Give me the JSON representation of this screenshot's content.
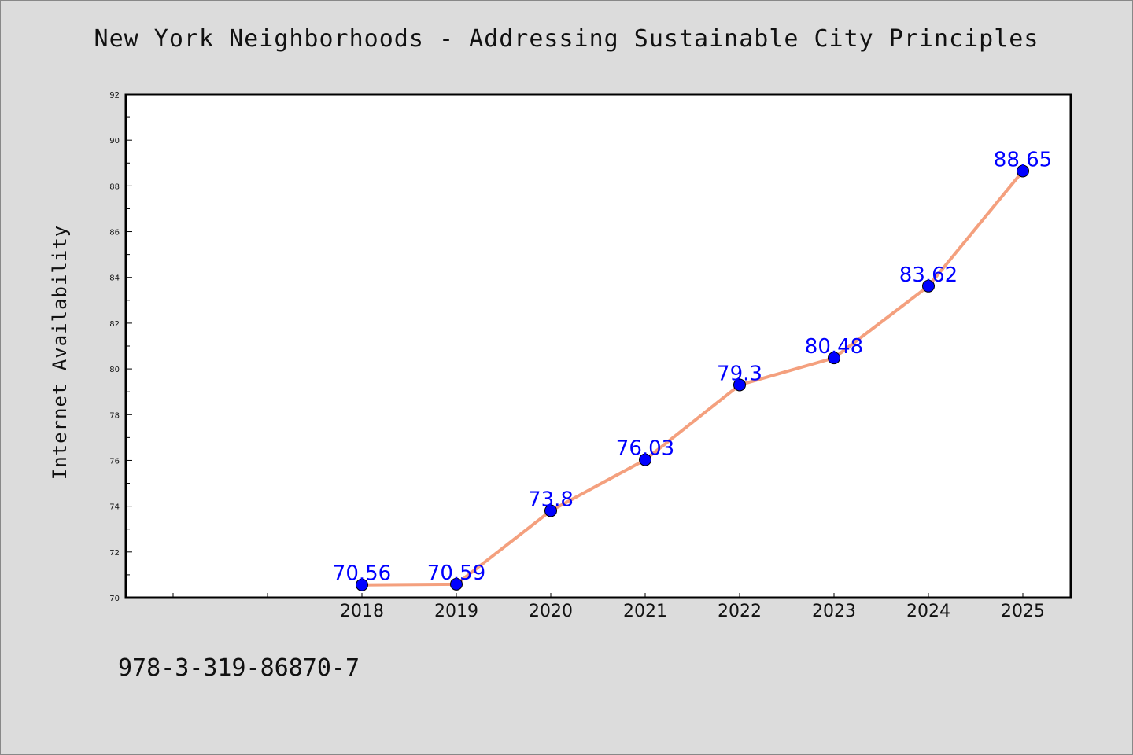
{
  "chart_data": {
    "type": "line",
    "title": "New York Neighborhoods - Addressing Sustainable City Principles",
    "xlabel": "",
    "ylabel": "Internet Availability",
    "categories": [
      "2018",
      "2019",
      "2020",
      "2021",
      "2022",
      "2023",
      "2024",
      "2025"
    ],
    "series": [
      {
        "values": [
          70.56,
          70.59,
          73.8,
          76.03,
          79.3,
          80.48,
          83.62,
          88.65
        ]
      }
    ],
    "data_labels": [
      "70.56",
      "70.59",
      "73.8",
      "76.03",
      "79.3",
      "80.48",
      "83.62",
      "88.65"
    ],
    "ylim": [
      70,
      92
    ],
    "yticks": [
      70,
      72,
      74,
      76,
      78,
      80,
      82,
      84,
      86,
      88,
      90,
      92
    ],
    "grid": false,
    "line_color": "#f4a07e",
    "marker_color": "#0000ff",
    "label_color": "#0000ff"
  },
  "footer": {
    "code": "978-3-319-86870-7"
  }
}
